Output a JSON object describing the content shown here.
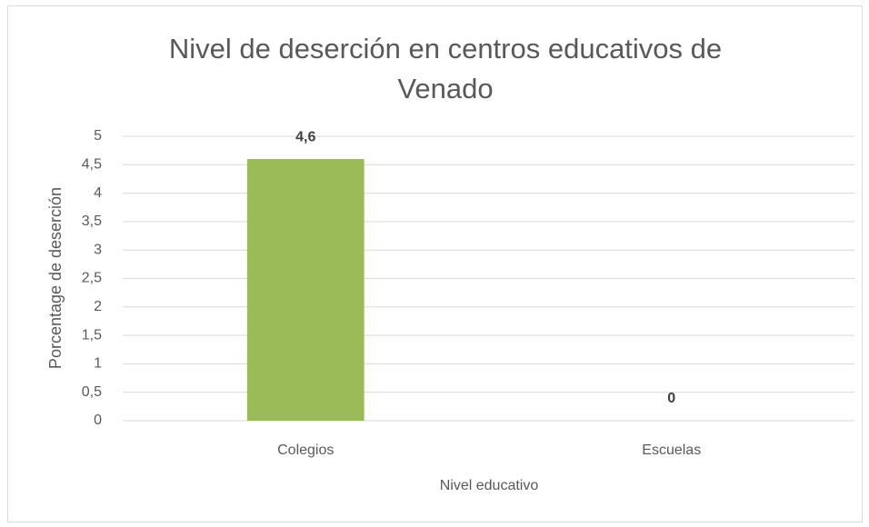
{
  "chart_data": {
    "type": "bar",
    "title": "Nivel de deserción en centros educativos de Venado",
    "x_label": "Nivel educativo",
    "y_label": "Porcentage de deserción",
    "categories": [
      "Colegios",
      "Escuelas"
    ],
    "values": [
      4.6,
      0
    ],
    "value_labels": [
      "4,6",
      "0"
    ],
    "color": "#9bbb59",
    "ylim": [
      0,
      5
    ],
    "yticks": [
      0,
      {
        "value": 0.5,
        "label": "0,5"
      },
      1,
      {
        "value": 1.5,
        "label": "1,5"
      },
      2,
      {
        "value": 2.5,
        "label": "2,5"
      },
      3,
      {
        "value": 3.5,
        "label": "3,5"
      },
      4,
      {
        "value": 4.5,
        "label": "4,5"
      },
      5
    ],
    "grid": true
  }
}
